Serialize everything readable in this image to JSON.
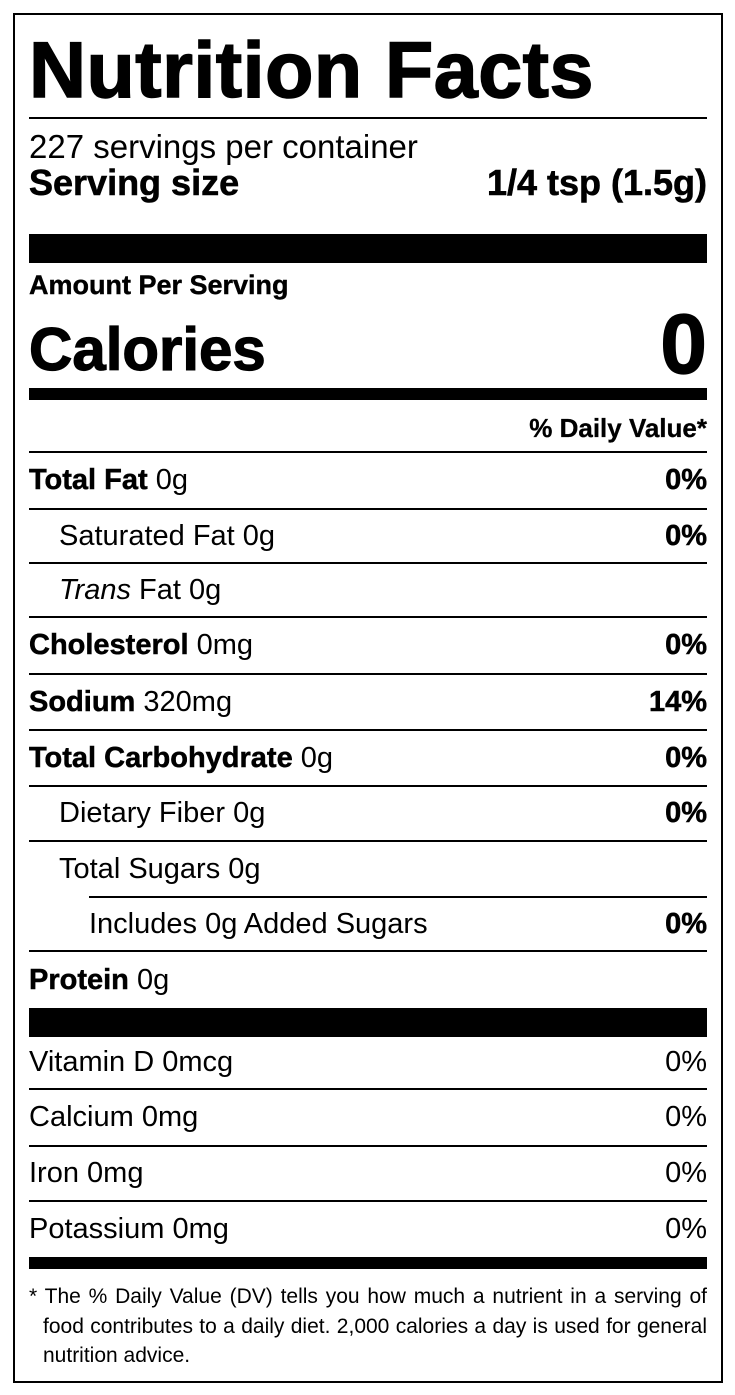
{
  "title": "Nutrition Facts",
  "servings_per_container": "227 servings per container",
  "serving_size": {
    "label": "Serving size",
    "value": "1/4 tsp (1.5g)"
  },
  "amount_per_serving": "Amount Per Serving",
  "calories": {
    "label": "Calories",
    "value": "0"
  },
  "daily_value_header": "% Daily Value*",
  "nutrients": [
    {
      "name": "Total Fat",
      "amount": "0g",
      "dv": "0%"
    },
    {
      "name": "Saturated Fat",
      "amount": "0g",
      "dv": "0%"
    },
    {
      "name_italic": "Trans",
      "name": "Fat",
      "amount": "0g"
    },
    {
      "name": "Cholesterol",
      "amount": "0mg",
      "dv": "0%"
    },
    {
      "name": "Sodium",
      "amount": "320mg",
      "dv": "14%"
    },
    {
      "name": "Total Carbohydrate",
      "amount": "0g",
      "dv": "0%"
    },
    {
      "name": "Dietary Fiber",
      "amount": "0g",
      "dv": "0%"
    },
    {
      "name": "Total Sugars",
      "amount": "0g"
    },
    {
      "name": "Includes 0g Added Sugars",
      "dv": "0%"
    },
    {
      "name": "Protein",
      "amount": "0g"
    }
  ],
  "vitamins": [
    {
      "name": "Vitamin D",
      "amount": "0mcg",
      "dv": "0%"
    },
    {
      "name": "Calcium",
      "amount": "0mg",
      "dv": "0%"
    },
    {
      "name": "Iron",
      "amount": "0mg",
      "dv": "0%"
    },
    {
      "name": "Potassium",
      "amount": "0mg",
      "dv": "0%"
    }
  ],
  "footnote": "* The % Daily Value (DV) tells you how much a nutrient in a serving of food contributes to a daily diet. 2,000 calories a day is used for general nutrition advice."
}
